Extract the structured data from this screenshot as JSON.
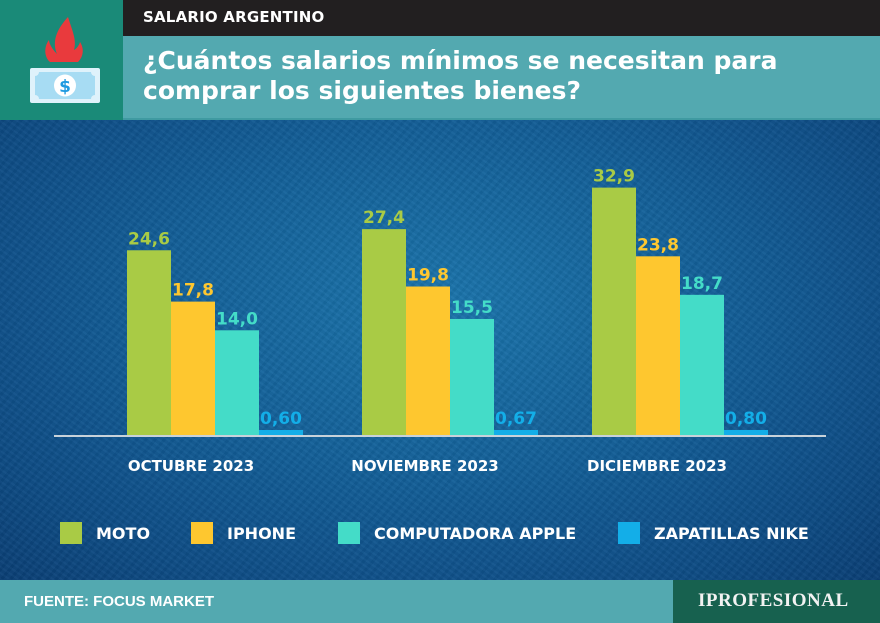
{
  "header": {
    "section": "SALARIO ARGENTINO",
    "title": "¿Cuántos salarios mínimos se necesitan para comprar los siguientes bienes?",
    "icon": "burning-money-icon"
  },
  "colors": {
    "moto": "#a9cb45",
    "iphone": "#fec72f",
    "computadora_apple": "#44dcc8",
    "zapatillas_nike": "#13aee8"
  },
  "chart_data": {
    "type": "bar",
    "title": "¿Cuántos salarios mínimos se necesitan para comprar los siguientes bienes?",
    "xlabel": "",
    "ylabel": "",
    "ylim": [
      0,
      35
    ],
    "grid": false,
    "legend_position": "bottom",
    "categories": [
      "OCTUBRE 2023",
      "NOVIEMBRE 2023",
      "DICIEMBRE 2023"
    ],
    "series": [
      {
        "name": "MOTO",
        "color": "#a9cb45",
        "values": [
          24.6,
          27.4,
          32.9
        ],
        "labels": [
          "24,6",
          "27,4",
          "32,9"
        ]
      },
      {
        "name": "IPHONE",
        "color": "#fec72f",
        "values": [
          17.8,
          19.8,
          23.8
        ],
        "labels": [
          "17,8",
          "19,8",
          "23,8"
        ]
      },
      {
        "name": "COMPUTADORA APPLE",
        "color": "#44dcc8",
        "values": [
          14.0,
          15.5,
          18.7
        ],
        "labels": [
          "14,0",
          "15,5",
          "18,7"
        ]
      },
      {
        "name": "ZAPATILLAS NIKE",
        "color": "#13aee8",
        "values": [
          0.6,
          0.67,
          0.8
        ],
        "labels": [
          "0,60",
          "0,67",
          "0,80"
        ]
      }
    ]
  },
  "footer": {
    "source": "FUENTE: FOCUS MARKET",
    "brand": "IPROFESIONAL"
  }
}
